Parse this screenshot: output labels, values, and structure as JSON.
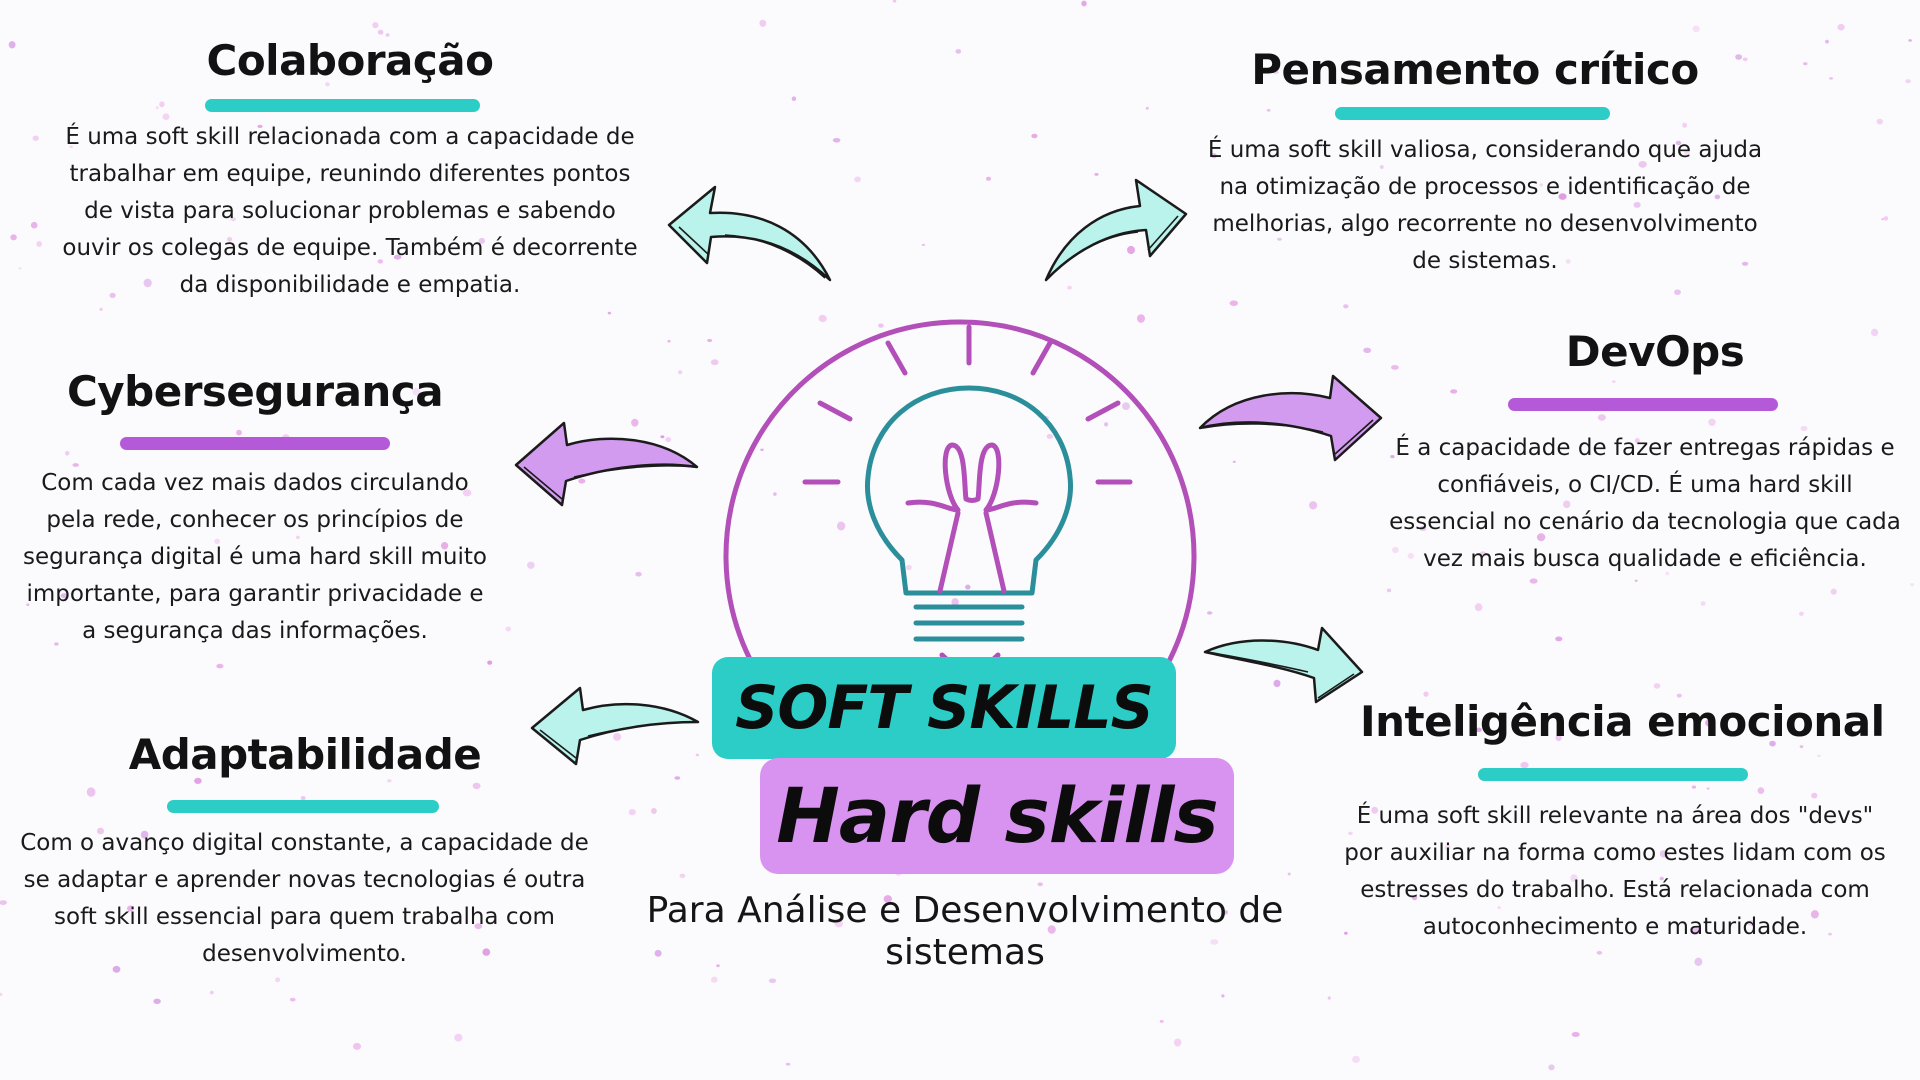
{
  "title": {
    "soft": "SOFT SKILLS",
    "hard": "Hard skills",
    "subtitle": "Para Análise e Desenvolvimento de sistemas"
  },
  "sections": {
    "colaboracao": {
      "title": "Colaboração",
      "text": "É uma soft skill relacionada com a capacidade de trabalhar em equipe, reunindo diferentes pontos de vista para solucionar problemas e sabendo ouvir os colegas de equipe. Também é decorrente da disponibilidade e empatia."
    },
    "cyberseguranca": {
      "title": "Cybersegurança",
      "text": "Com cada vez mais dados circulando pela rede, conhecer os princípios de segurança digital é uma hard skill muito importante, para garantir privacidade e a segurança das informações."
    },
    "adaptabilidade": {
      "title": "Adaptabilidade",
      "text": "Com o avanço digital constante, a capacidade de se adaptar e aprender novas tecnologias é outra soft skill essencial para quem trabalha com desenvolvimento."
    },
    "pensamento": {
      "title": "Pensamento crítico",
      "text": "É uma soft skill valiosa, considerando que ajuda na otimização de processos e identificação de melhorias, algo recorrente no desenvolvimento de sistemas."
    },
    "devops": {
      "title": "DevOps",
      "text": "É a capacidade de fazer entregas rápidas e confiáveis, o CI/CD. É uma hard skill essencial no cenário da tecnologia que cada vez mais busca qualidade e eficiência."
    },
    "inteligencia": {
      "title": "Inteligência emocional",
      "text": "É uma soft skill relevante na área dos \"devs\" por auxiliar na forma como estes lidam com os estresses do trabalho. Está relacionada com autoconhecimento e maturidade."
    }
  },
  "icons": {
    "center": "lightbulb-icon",
    "arrows": "curved-arrow-icon"
  },
  "colors": {
    "teal": "#2ccdc6",
    "purple": "#b45ad8",
    "lavender": "#d892ef",
    "arrow_teal": "#b9f3ec",
    "arrow_purple": "#d39bf0",
    "bulb_outline": "#b24fb8",
    "bulb_teal": "#2a8f9a",
    "background": "#fbfafc"
  }
}
